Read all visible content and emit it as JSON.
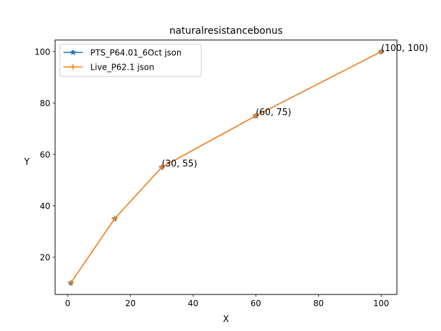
{
  "chart_data": {
    "type": "line",
    "title": "naturalresistancebonus",
    "xlabel": "X",
    "ylabel": "Y",
    "xlim": [
      -4.0,
      105.0
    ],
    "ylim": [
      5.5,
      104.5
    ],
    "xticks": [
      0,
      20,
      40,
      60,
      80,
      100
    ],
    "yticks": [
      20,
      40,
      60,
      80,
      100
    ],
    "grid": false,
    "legend_position": "upper-left",
    "series": [
      {
        "name": "PTS_P64.01_6Oct json",
        "color": "#1f77b4",
        "marker": "star",
        "x": [
          1,
          15,
          30,
          60,
          100
        ],
        "y": [
          10,
          35,
          55,
          75,
          100
        ]
      },
      {
        "name": "Live_P62.1 json",
        "color": "#ff7f0e",
        "marker": "plus",
        "x": [
          1,
          15,
          30,
          60,
          100
        ],
        "y": [
          10,
          35,
          55,
          75,
          100
        ]
      }
    ],
    "annotations": [
      {
        "text": "(30, 55)",
        "x": 30,
        "y": 55
      },
      {
        "text": "(60, 75)",
        "x": 60,
        "y": 75
      },
      {
        "text": "(100, 100)",
        "x": 100,
        "y": 100
      }
    ]
  }
}
